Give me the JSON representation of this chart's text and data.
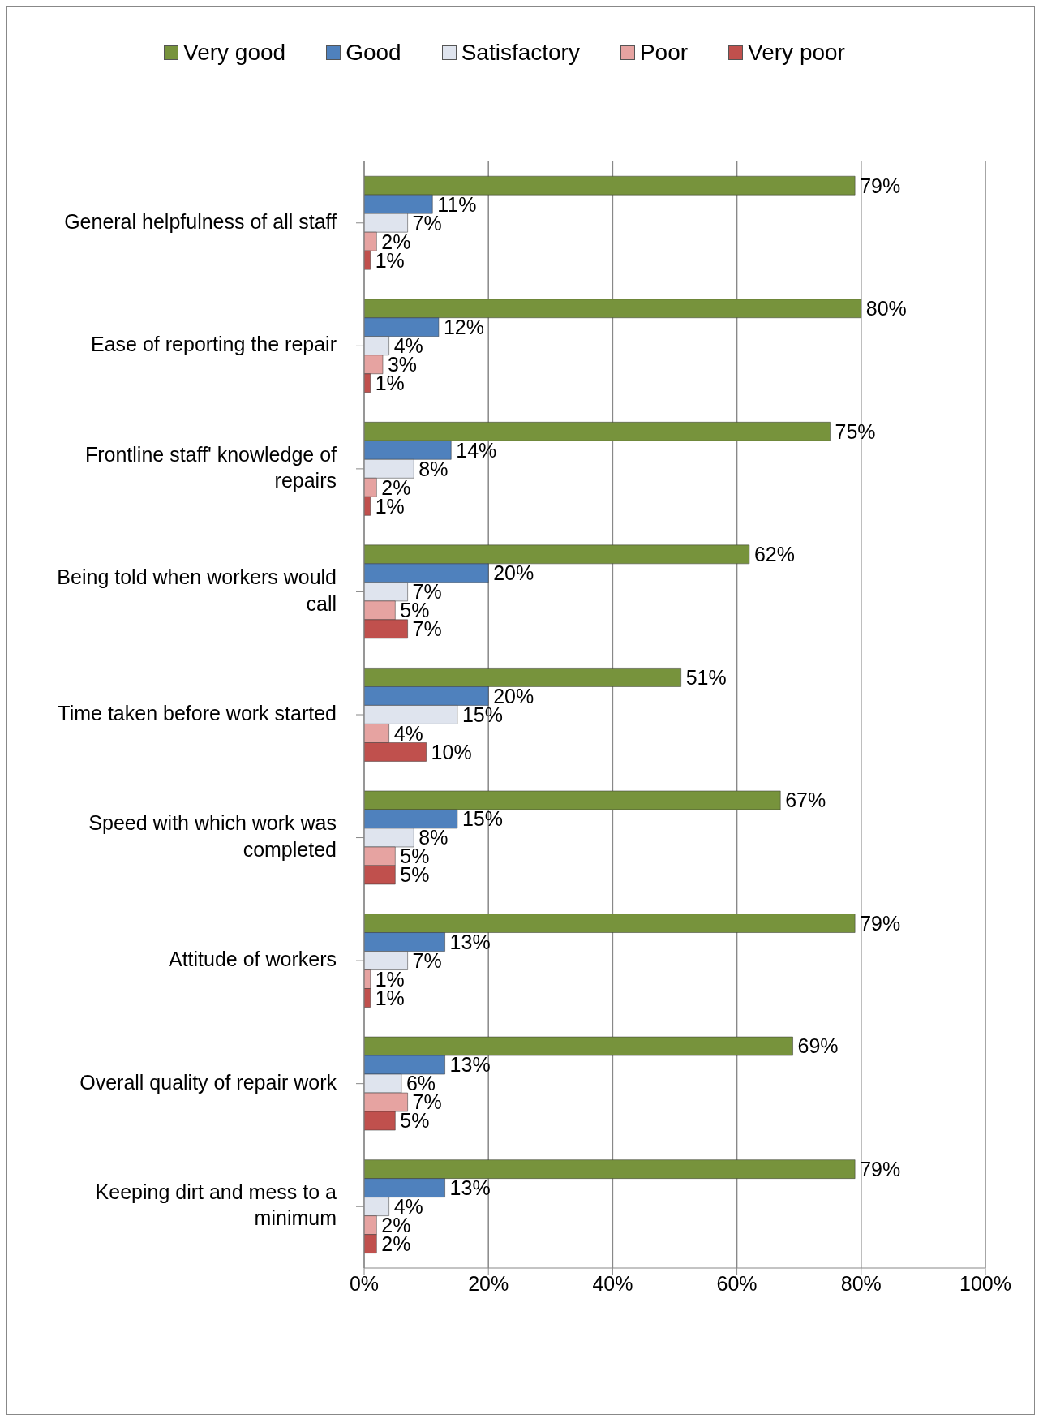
{
  "chart_data": {
    "type": "bar",
    "orientation": "horizontal",
    "categories": [
      "General helpfulness of all staff",
      "Ease of reporting the repair",
      "Frontline staff' knowledge of repairs",
      "Being told when workers would call",
      "Time taken before work started",
      "Speed with which work was completed",
      "Attitude of workers",
      "Overall quality of repair work",
      "Keeping dirt and mess to a minimum"
    ],
    "series": [
      {
        "name": "Very good",
        "color": "#77933c",
        "values": [
          79,
          80,
          75,
          62,
          51,
          67,
          79,
          69,
          79
        ],
        "value_labels": [
          "79%",
          "80%",
          "75%",
          "62%",
          "51%",
          "67%",
          "79%",
          "69%",
          "79%"
        ]
      },
      {
        "name": "Good",
        "color": "#4f81bd",
        "values": [
          11,
          12,
          14,
          20,
          20,
          15,
          13,
          13,
          13
        ],
        "value_labels": [
          "11%",
          "12%",
          "14%",
          "20%",
          "20%",
          "15%",
          "13%",
          "13%",
          "13%"
        ]
      },
      {
        "name": "Satisfactory",
        "color": "#dfe4ee",
        "values": [
          7,
          4,
          8,
          7,
          15,
          8,
          7,
          6,
          4
        ],
        "value_labels": [
          "7%",
          "4%",
          "8%",
          "7%",
          "15%",
          "8%",
          "7%",
          "6%",
          "4%"
        ]
      },
      {
        "name": "Poor",
        "color": "#e6a3a1",
        "values": [
          2,
          3,
          2,
          5,
          4,
          5,
          1,
          7,
          2
        ],
        "value_labels": [
          "2%",
          "3%",
          "2%",
          "5%",
          "4%",
          "5%",
          "1%",
          "7%",
          "2%"
        ]
      },
      {
        "name": "Very poor",
        "color": "#c0504d",
        "values": [
          1,
          1,
          1,
          7,
          10,
          5,
          1,
          5,
          2
        ],
        "value_labels": [
          "1%",
          "1%",
          "1%",
          "7%",
          "10%",
          "5%",
          "1%",
          "5%",
          "2%"
        ]
      }
    ],
    "xlim": [
      0,
      100
    ],
    "xticks": [
      {
        "value": 0,
        "label": "0%"
      },
      {
        "value": 20,
        "label": "20%"
      },
      {
        "value": 40,
        "label": "40%"
      },
      {
        "value": 60,
        "label": "60%"
      },
      {
        "value": 80,
        "label": "80%"
      },
      {
        "value": 100,
        "label": "100%"
      }
    ],
    "grid": "x",
    "legend": "top"
  }
}
